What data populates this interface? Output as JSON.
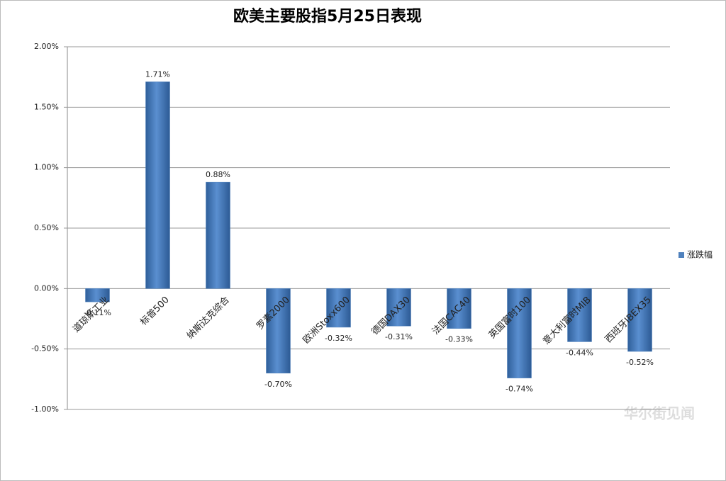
{
  "chart_data": {
    "type": "bar",
    "title": "欧美主要股指5月25日表现",
    "categories": [
      "道琼斯工业",
      "标普500",
      "纳斯达克综合",
      "罗素2000",
      "欧洲Stoxx600",
      "德国DAX30",
      "法国CAC40",
      "英国富时100",
      "意大利富时MIB",
      "西班牙IBEX35"
    ],
    "series": [
      {
        "name": "涨跌幅",
        "color": "#4f81bd",
        "values": [
          -0.11,
          1.71,
          0.88,
          -0.7,
          -0.32,
          -0.31,
          -0.33,
          -0.74,
          -0.44,
          -0.52
        ],
        "value_labels": [
          "-0.11%",
          "1.71%",
          "0.88%",
          "-0.70%",
          "-0.32%",
          "-0.31%",
          "-0.33%",
          "-0.74%",
          "-0.44%",
          "-0.52%"
        ]
      }
    ],
    "ylim": [
      -1,
      2
    ],
    "yticks": [
      {
        "value": -1,
        "label": "-1.00%"
      },
      {
        "value": -0.5,
        "label": "-0.50%"
      },
      {
        "value": 0,
        "label": "0.00%"
      },
      {
        "value": 0.5,
        "label": "0.50%"
      },
      {
        "value": 1,
        "label": "1.00%"
      },
      {
        "value": 1.5,
        "label": "1.50%"
      },
      {
        "value": 2,
        "label": "2.00%"
      }
    ],
    "grid": true,
    "legend": "right",
    "watermark": "华尔街见闻"
  }
}
